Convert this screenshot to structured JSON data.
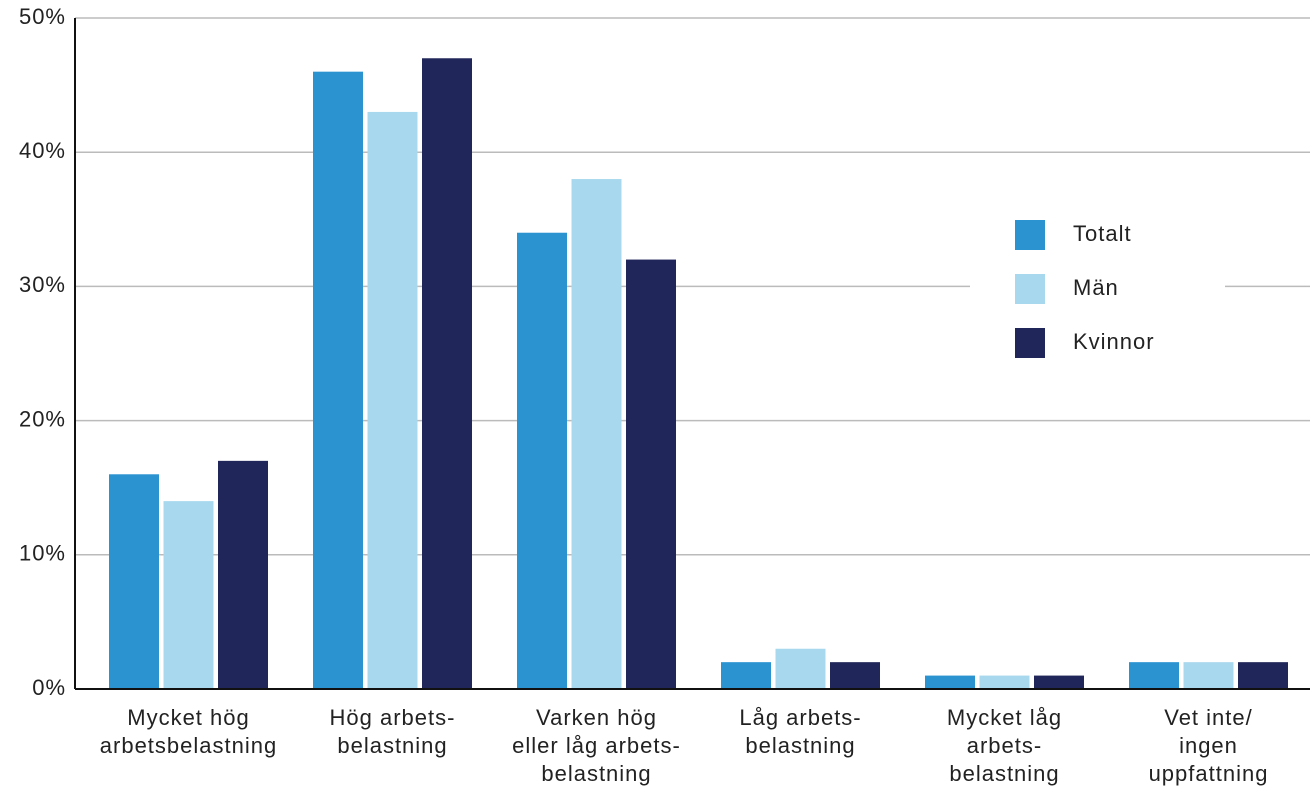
{
  "chart_data": {
    "type": "bar",
    "categories": [
      "Mycket hög\narbetsbelastning",
      "Hög arbets-\nbelastning",
      "Varken hög\neller låg arbets-\nbelastning",
      "Låg arbets-\nbelastning",
      "Mycket låg\narbets-\nbelastning",
      "Vet inte/\ningen\nuppfattning"
    ],
    "series": [
      {
        "name": "Totalt",
        "color": "#2b93d0",
        "values": [
          16,
          46,
          34,
          2,
          1,
          2
        ]
      },
      {
        "name": "Män",
        "color": "#a8d8ee",
        "values": [
          14,
          43,
          38,
          3,
          1,
          2
        ]
      },
      {
        "name": "Kvinnor",
        "color": "#202659",
        "values": [
          17,
          47,
          32,
          2,
          1,
          2
        ]
      }
    ],
    "ylim": [
      0,
      50
    ],
    "yticks": [
      {
        "value": 0,
        "label": "0%"
      },
      {
        "value": 10,
        "label": "10%"
      },
      {
        "value": 20,
        "label": "20%"
      },
      {
        "value": 30,
        "label": "30%"
      },
      {
        "value": 40,
        "label": "40%"
      },
      {
        "value": 50,
        "label": "50%"
      }
    ],
    "grid": true,
    "legend": "right"
  }
}
